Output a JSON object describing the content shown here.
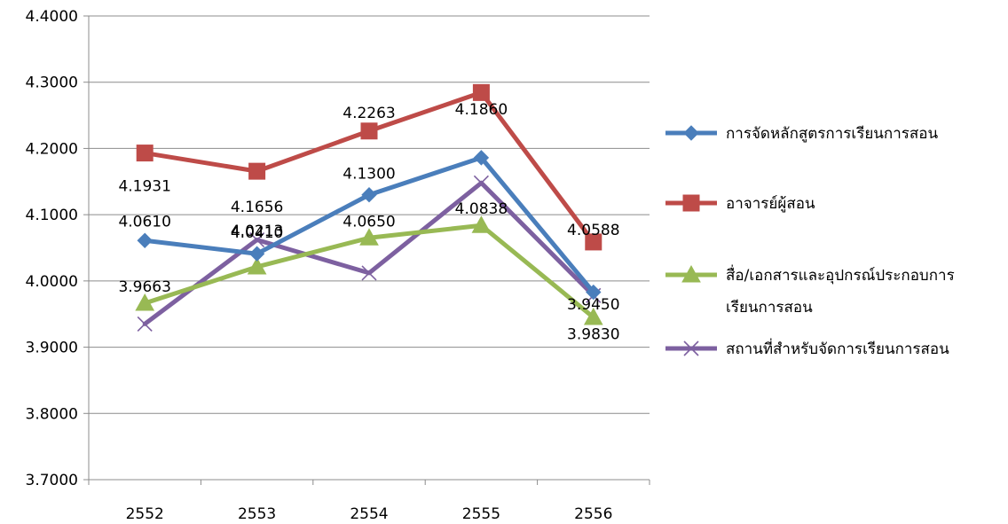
{
  "chart_data": {
    "type": "line",
    "categories": [
      "2552",
      "2553",
      "2554",
      "2555",
      "2556"
    ],
    "ylim": [
      3.7,
      4.4
    ],
    "ytick_labels": [
      "3.7000",
      "3.8000",
      "3.9000",
      "4.0000",
      "4.1000",
      "4.2000",
      "4.3000",
      "4.4000"
    ],
    "grid": true,
    "legend_position": "right",
    "series": [
      {
        "name": "การจัดหลักสูตรการเรียนการสอน",
        "color": "#4a7ebb",
        "marker": "diamond",
        "values": [
          4.061,
          4.041,
          4.13,
          4.186,
          3.983
        ],
        "labels": [
          "4.0610",
          "4.0410",
          "4.1300",
          "4.1860",
          "3.9830"
        ]
      },
      {
        "name": "อาจารย์ผู้สอน",
        "color": "#be4b48",
        "marker": "square",
        "values": [
          4.1931,
          4.1656,
          4.2263,
          4.2844,
          4.0588
        ],
        "labels": [
          "4.1931",
          "4.1656",
          "4.2263",
          "4.2844",
          "4.0588"
        ]
      },
      {
        "name": "สื่อ/เอกสารและอุปกรณ์ประกอบการเรียนการสอน",
        "legend_lines": [
          "สื่อ/เอกสารและอุปกรณ์ประกอบการ",
          "เรียนการสอน"
        ],
        "color": "#98b954",
        "marker": "triangle",
        "values": [
          3.9663,
          4.0213,
          4.065,
          4.0838,
          3.945
        ],
        "labels": [
          "3.9663",
          "4.0213",
          "4.0650",
          "4.0838",
          "3.9450"
        ]
      },
      {
        "name": "สถานที่สำหรับจัดการเรียนการสอน",
        "color": "#7d60a0",
        "marker": "x",
        "values": [
          3.935,
          4.062,
          4.012,
          4.148,
          3.978
        ],
        "labels": []
      }
    ]
  }
}
